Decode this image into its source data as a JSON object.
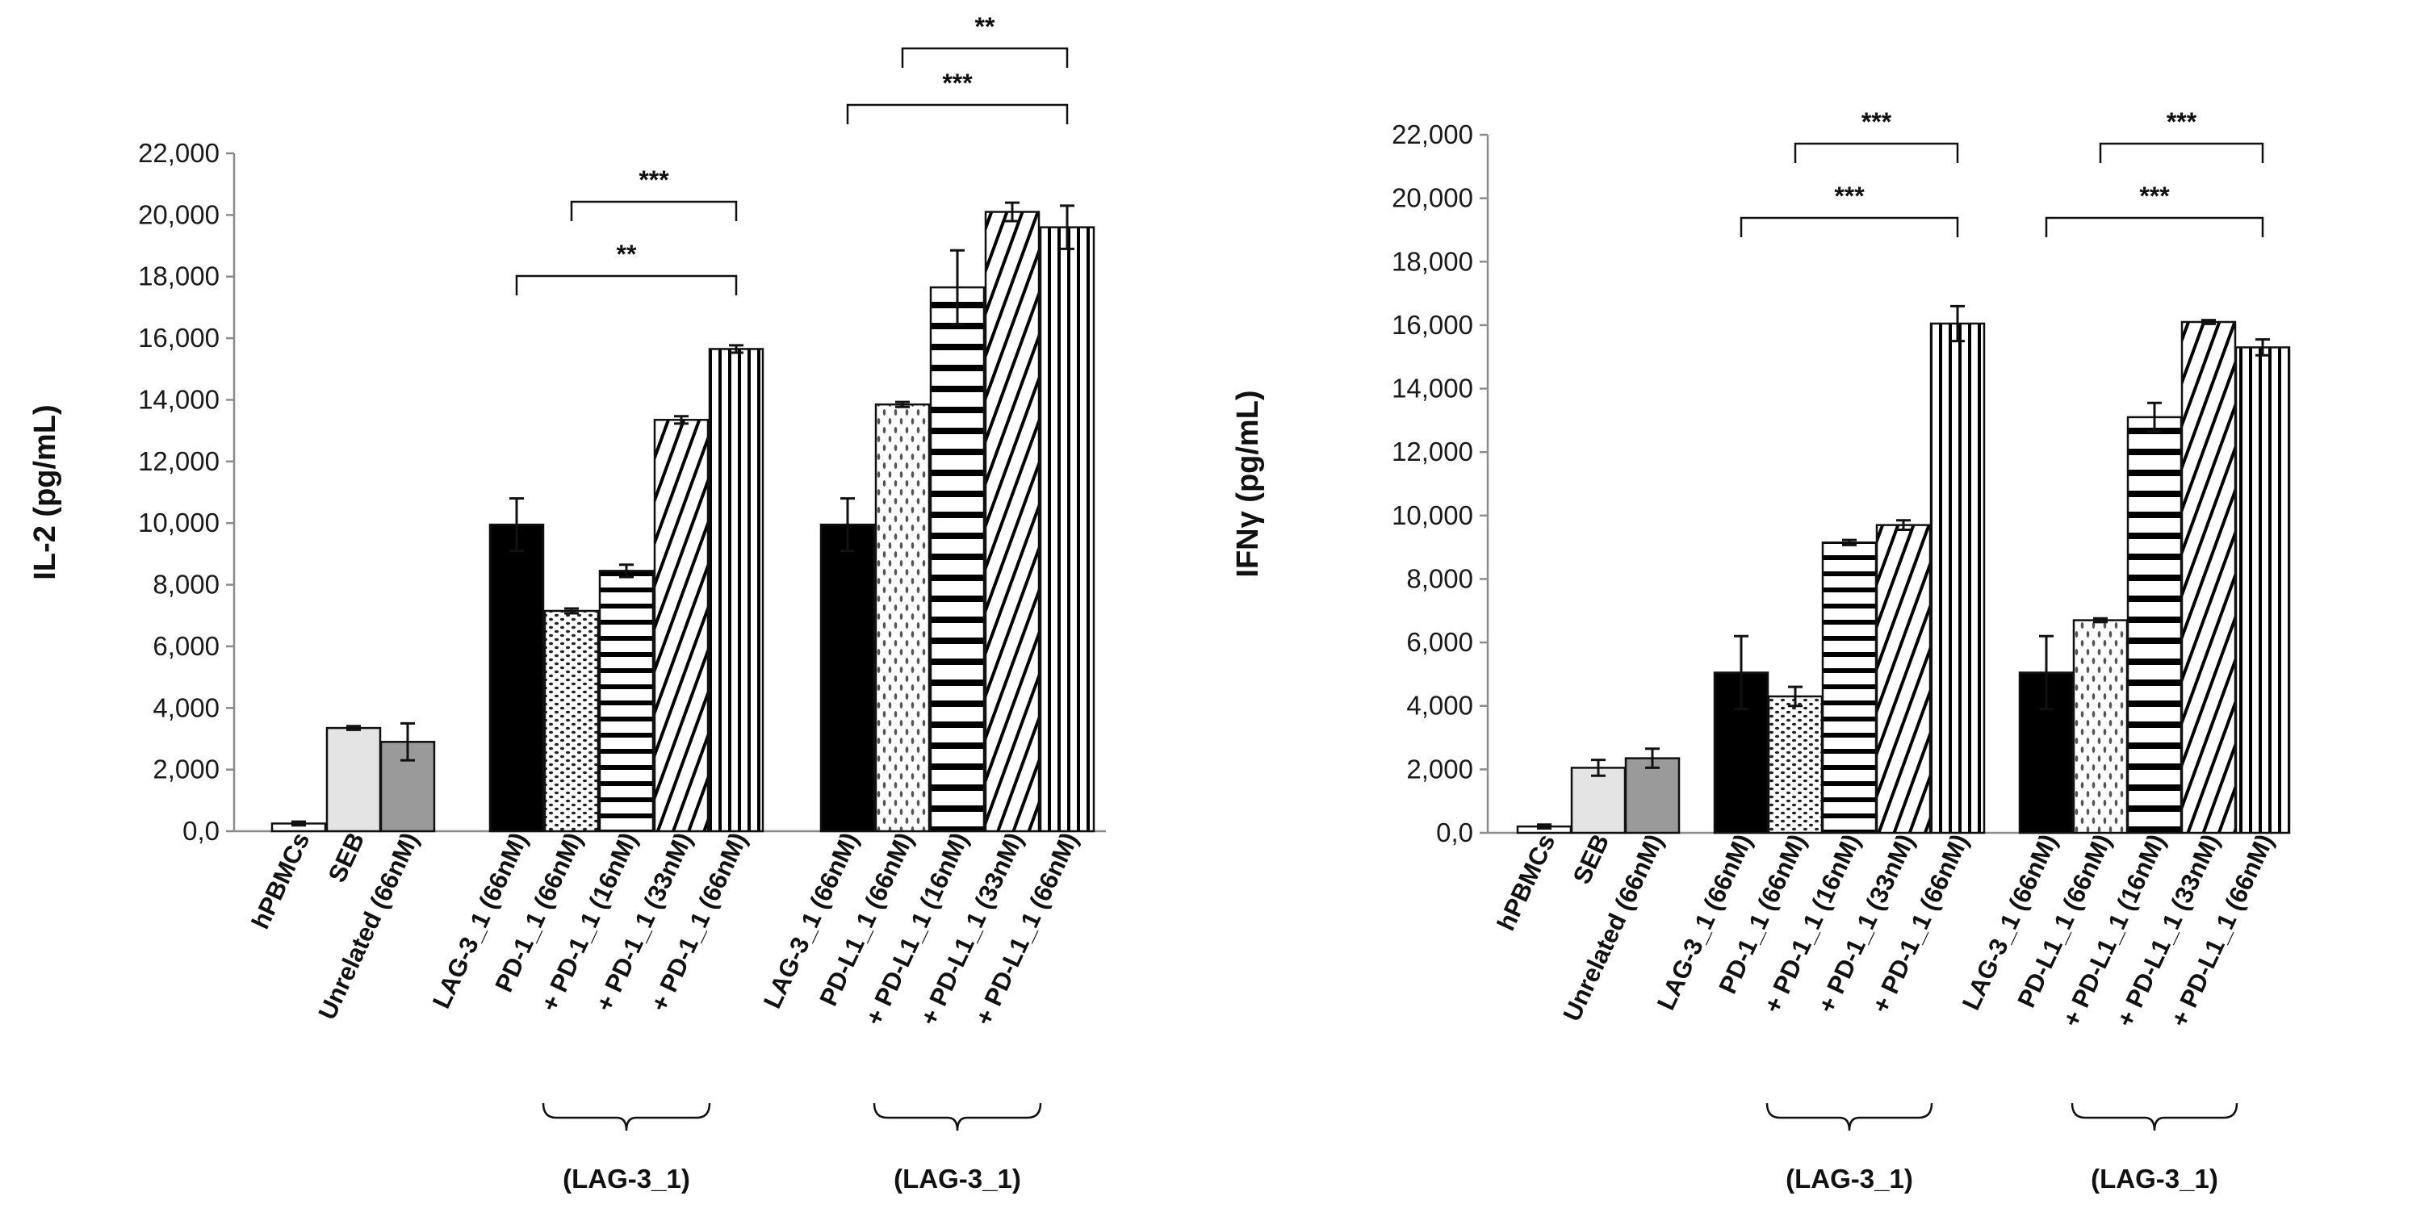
{
  "chart_data": [
    {
      "type": "bar",
      "ylabel": "IL-2 (pg/mL)",
      "ylim": [
        0,
        22000
      ],
      "yticks": [
        "0,0",
        "2,000",
        "4,000",
        "6,000",
        "8,000",
        "10,000",
        "12,000",
        "14,000",
        "16,000",
        "18,000",
        "20,000",
        "22,000"
      ],
      "grid": false,
      "categories": [
        "hPBMCs",
        "SEB",
        "Unrelated (66nM)",
        "LAG-3_1 (66nM)",
        "PD-1_1 (66nM)",
        "+ PD-1_1 (16nM)",
        "+ PD-1_1 (33nM)",
        "+ PD-1_1 (66nM)",
        "LAG-3_1 (66nM)",
        "PD-L1_1 (66nM)",
        "+ PD-L1_1 (16nM)",
        "+ PD-L1_1 (33nM)",
        "+ PD-L1_1 (66nM)"
      ],
      "values": [
        250,
        3350,
        2900,
        9950,
        7150,
        8450,
        13350,
        15650,
        9950,
        13850,
        17650,
        20100,
        19600
      ],
      "errors": [
        60,
        60,
        600,
        850,
        80,
        200,
        120,
        120,
        850,
        80,
        1200,
        300,
        700
      ],
      "significance": [
        {
          "label": "***",
          "from": 4,
          "to": 7
        },
        {
          "label": "**",
          "from": 3,
          "to": 7
        },
        {
          "label": "**",
          "from": 9,
          "to": 12
        },
        {
          "label": "***",
          "from": 8,
          "to": 12
        }
      ],
      "group_labels": [
        {
          "label": "(LAG-3_1)",
          "from": 4,
          "to": 6
        },
        {
          "label": "(LAG-3_1)",
          "from": 9,
          "to": 11
        }
      ]
    },
    {
      "type": "bar",
      "ylabel": "IFNγ (pg/mL)",
      "ylim": [
        0,
        22000
      ],
      "yticks": [
        "0,0",
        "2,000",
        "4,000",
        "6,000",
        "8,000",
        "10,000",
        "12,000",
        "14,000",
        "16,000",
        "18,000",
        "20,000",
        "22,000"
      ],
      "grid": false,
      "categories": [
        "hPBMCs",
        "SEB",
        "Unrelated (66nM)",
        "LAG-3_1 (66nM)",
        "PD-1_1 (66nM)",
        "+ PD-1_1 (16nM)",
        "+ PD-1_1 (33nM)",
        "+ PD-1_1 (66nM)",
        "LAG-3_1 (66nM)",
        "PD-L1_1 (66nM)",
        "+ PD-L1_1 (16nM)",
        "+ PD-L1_1 (33nM)",
        "+ PD-L1_1 (66nM)"
      ],
      "values": [
        200,
        2050,
        2350,
        5050,
        4300,
        9150,
        9700,
        16050,
        5050,
        6700,
        13100,
        16100,
        15300
      ],
      "errors": [
        60,
        250,
        300,
        1150,
        300,
        80,
        150,
        550,
        1150,
        60,
        450,
        60,
        250
      ],
      "significance": [
        {
          "label": "***",
          "from": 4,
          "to": 7
        },
        {
          "label": "***",
          "from": 3,
          "to": 7
        },
        {
          "label": "***",
          "from": 9,
          "to": 12
        },
        {
          "label": "***",
          "from": 8,
          "to": 12
        }
      ],
      "group_labels": [
        {
          "label": "(LAG-3_1)",
          "from": 4,
          "to": 6
        },
        {
          "label": "(LAG-3_1)",
          "from": 9,
          "to": 11
        }
      ]
    }
  ],
  "styles": {
    "fills": [
      "#ffffff",
      "#e4e4e4",
      "#9a9a9a",
      "#000000",
      "dots",
      "hlines",
      "diag",
      "vlines",
      "#000000",
      "vdots",
      "hlines-thick",
      "diag",
      "vlines"
    ],
    "palette": {
      "axis": "#8c8c8c",
      "ink": "#111111"
    }
  }
}
